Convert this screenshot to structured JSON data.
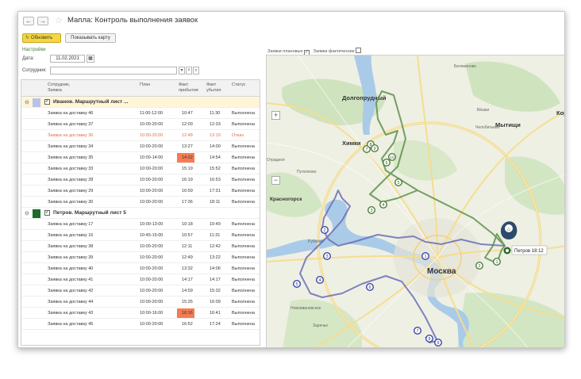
{
  "header": {
    "back": "←",
    "forward": "→",
    "star": "☆",
    "title": "Мапла: Контроль выполнения заявок"
  },
  "toolbar": {
    "refresh_icon": "↻",
    "refresh_label": "Обновить",
    "show_map_label": "Показывать карту"
  },
  "settings": {
    "link": "Настройки",
    "date_label": "Дата:",
    "date_value": "11.02.2021",
    "calendar_icon": "▦",
    "employee_label": "Сотрудник:",
    "employee_value": "",
    "dropdown": "▾",
    "clear": "×",
    "open": "⌕"
  },
  "table": {
    "columns": [
      "Сотрудник,\nЗаявка",
      "План",
      "Факт\nприбытия",
      "Факт\nубытия",
      "Статус"
    ],
    "groups": [
      {
        "name": "Иванов. Маршрутный лист ...",
        "color": "#b9c3e8",
        "rows": [
          {
            "order": "Заявка на доставку 46",
            "plan": "11:00-12:00",
            "arrive": "10:47",
            "leave": "11:30",
            "status": "Выполнена",
            "late": false,
            "highlight": false
          },
          {
            "order": "Заявка на доставку 37",
            "plan": "10:00-20:00",
            "arrive": "12:00",
            "leave": "12:33",
            "status": "Выполнена",
            "late": false,
            "highlight": false
          },
          {
            "order": "Заявка на доставку 36",
            "plan": "10:00-20:00",
            "arrive": "12:48",
            "leave": "13:19",
            "status": "Отказ",
            "late": true,
            "highlight": false
          },
          {
            "order": "Заявка на доставку 34",
            "plan": "10:00-20:00",
            "arrive": "13:27",
            "leave": "14:00",
            "status": "Выполнена",
            "late": false,
            "highlight": false
          },
          {
            "order": "Заявка на доставку 35",
            "plan": "10:00-14:00",
            "arrive": "14:22",
            "leave": "14:54",
            "status": "Выполнена",
            "late": false,
            "highlight": true
          },
          {
            "order": "Заявка на доставку 33",
            "plan": "10:00-20:00",
            "arrive": "15:19",
            "leave": "15:52",
            "status": "Выполнена",
            "late": false,
            "highlight": false
          },
          {
            "order": "Заявка на доставку 28",
            "plan": "10:00-20:00",
            "arrive": "16:19",
            "leave": "16:53",
            "status": "Выполнена",
            "late": false,
            "highlight": false
          },
          {
            "order": "Заявка на доставку 29",
            "plan": "10:00-20:00",
            "arrive": "16:59",
            "leave": "17:31",
            "status": "Выполнена",
            "late": false,
            "highlight": false
          },
          {
            "order": "Заявка на доставку 30",
            "plan": "10:00-20:00",
            "arrive": "17:36",
            "leave": "18:11",
            "status": "Выполнена",
            "late": false,
            "highlight": false
          }
        ]
      },
      {
        "name": "Петров. Маршрутный лист 5",
        "color": "#1f6b2a",
        "rows": [
          {
            "order": "Заявка на доставку 17",
            "plan": "10:00-13:00",
            "arrive": "10:18",
            "leave": "10:49",
            "status": "Выполнена",
            "late": false,
            "highlight": false
          },
          {
            "order": "Заявка на доставку 16",
            "plan": "10:45-15:00",
            "arrive": "10:57",
            "leave": "11:31",
            "status": "Выполнена",
            "late": false,
            "highlight": false
          },
          {
            "order": "Заявка на доставку 38",
            "plan": "10:00-20:00",
            "arrive": "12:11",
            "leave": "12:42",
            "status": "Выполнена",
            "late": false,
            "highlight": false
          },
          {
            "order": "Заявка на доставку 39",
            "plan": "10:00-20:00",
            "arrive": "12:49",
            "leave": "13:22",
            "status": "Выполнена",
            "late": false,
            "highlight": false
          },
          {
            "order": "Заявка на доставку 40",
            "plan": "10:00-20:00",
            "arrive": "13:32",
            "leave": "14:06",
            "status": "Выполнена",
            "late": false,
            "highlight": false
          },
          {
            "order": "Заявка на доставку 41",
            "plan": "10:00-20:00",
            "arrive": "14:17",
            "leave": "14:17",
            "status": "Выполнена",
            "late": false,
            "highlight": false
          },
          {
            "order": "Заявка на доставку 42",
            "plan": "10:00-20:00",
            "arrive": "14:59",
            "leave": "15:32",
            "status": "Выполнена",
            "late": false,
            "highlight": false
          },
          {
            "order": "Заявка на доставку 44",
            "plan": "10:00-20:00",
            "arrive": "15:35",
            "leave": "16:09",
            "status": "Выполнена",
            "late": false,
            "highlight": false
          },
          {
            "order": "Заявка на доставку 43",
            "plan": "10:00-16:00",
            "arrive": "16:16",
            "leave": "16:41",
            "status": "Выполнена",
            "late": false,
            "highlight": true
          },
          {
            "order": "Заявка на доставку 45",
            "plan": "10:00-20:00",
            "arrive": "16:52",
            "leave": "17:24",
            "status": "Выполнена",
            "late": false,
            "highlight": false
          }
        ]
      }
    ]
  },
  "map": {
    "planned_label": "Заявки плановые",
    "actual_label": "Заявки фактические",
    "zoom_in": "+",
    "zoom_out": "−",
    "places": {
      "dolgoprudny": "Долгопрудный",
      "mytishchi": "Мытищи",
      "khimki": "Химки",
      "krasnogorsk": "Красногорск",
      "moskva": "Москва",
      "vnukovo": "Внуково",
      "vatutinki": "Ватутинки",
      "beliankovo": "Беляниново",
      "vishki": "Вёшки",
      "kor": "Кор",
      "rublevo": "Рублёво",
      "novoivanovskoe": "Новоивановское",
      "zarechye": "Заречье",
      "chelobityevo": "Челобитьево",
      "putilkovo": "Путилково",
      "otradnoe": "Отрадное"
    },
    "vehicle_label": "Петров 18:12",
    "home_icon": "⌂",
    "green_markers": [
      "1",
      "2",
      "3",
      "4",
      "5",
      "6",
      "7",
      "8",
      "9",
      "10"
    ],
    "blue_markers": [
      "1",
      "2",
      "3",
      "4",
      "5",
      "6",
      "7",
      "8",
      "9"
    ]
  },
  "colors": {
    "accent_yellow": "#f5d63e",
    "late_row": "#e26a4a",
    "highlight_cell": "#f57c51",
    "route_green": "#5e8f4a",
    "route_blue": "#6b6fb5",
    "group_row": "#fff6d8"
  }
}
